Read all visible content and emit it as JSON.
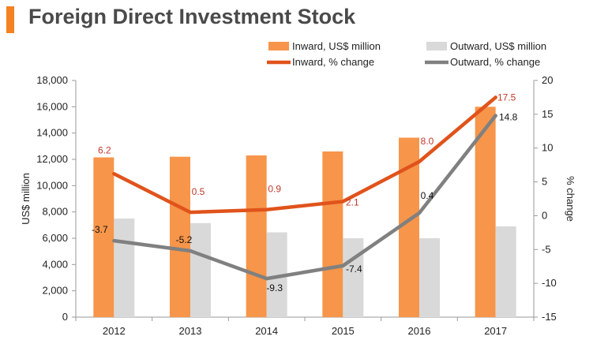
{
  "title": "Foreign Direct Investment Stock",
  "colors": {
    "accent": "#f58220",
    "inward_bar": "#f7954a",
    "outward_bar": "#d9d9d9",
    "inward_line": "#e0531b",
    "outward_line": "#808080",
    "inward_label": "#c0392b",
    "outward_label": "#111111"
  },
  "chart_data": {
    "type": "bar",
    "categories": [
      "2012",
      "2013",
      "2014",
      "2015",
      "2016",
      "2017"
    ],
    "series": [
      {
        "name": "Inward, US$ million",
        "type": "bar",
        "axis": "left",
        "values": [
          12150,
          12200,
          12300,
          12600,
          13650,
          16000
        ]
      },
      {
        "name": "Outward, US$ million",
        "type": "bar",
        "axis": "left",
        "values": [
          7500,
          7150,
          6450,
          6000,
          6000,
          6900
        ]
      },
      {
        "name": "Inward, % change",
        "type": "line",
        "axis": "right",
        "values": [
          6.2,
          0.5,
          0.9,
          2.1,
          8.0,
          17.5
        ],
        "labels": [
          "6.2",
          "0.5",
          "0.9",
          "2.1",
          "8.0",
          "17.5"
        ]
      },
      {
        "name": "Outward, % change",
        "type": "line",
        "axis": "right",
        "values": [
          -3.7,
          -5.2,
          -9.3,
          -7.4,
          0.4,
          14.8
        ],
        "labels": [
          "-3.7",
          "-5.2",
          "-9.3",
          "-7.4",
          "0.4",
          "14.8"
        ]
      }
    ],
    "ylabel": "US$ million",
    "y2label": "% change",
    "ylim": [
      0,
      18000
    ],
    "y2lim": [
      -15,
      20
    ],
    "yticks": [
      "0",
      "2,000",
      "4,000",
      "6,000",
      "8,000",
      "10,000",
      "12,000",
      "14,000",
      "16,000",
      "18,000"
    ],
    "y2ticks": [
      "-15",
      "-10",
      "-5",
      "0",
      "5",
      "10",
      "15",
      "20"
    ],
    "grid": false,
    "legend_position": "top"
  }
}
